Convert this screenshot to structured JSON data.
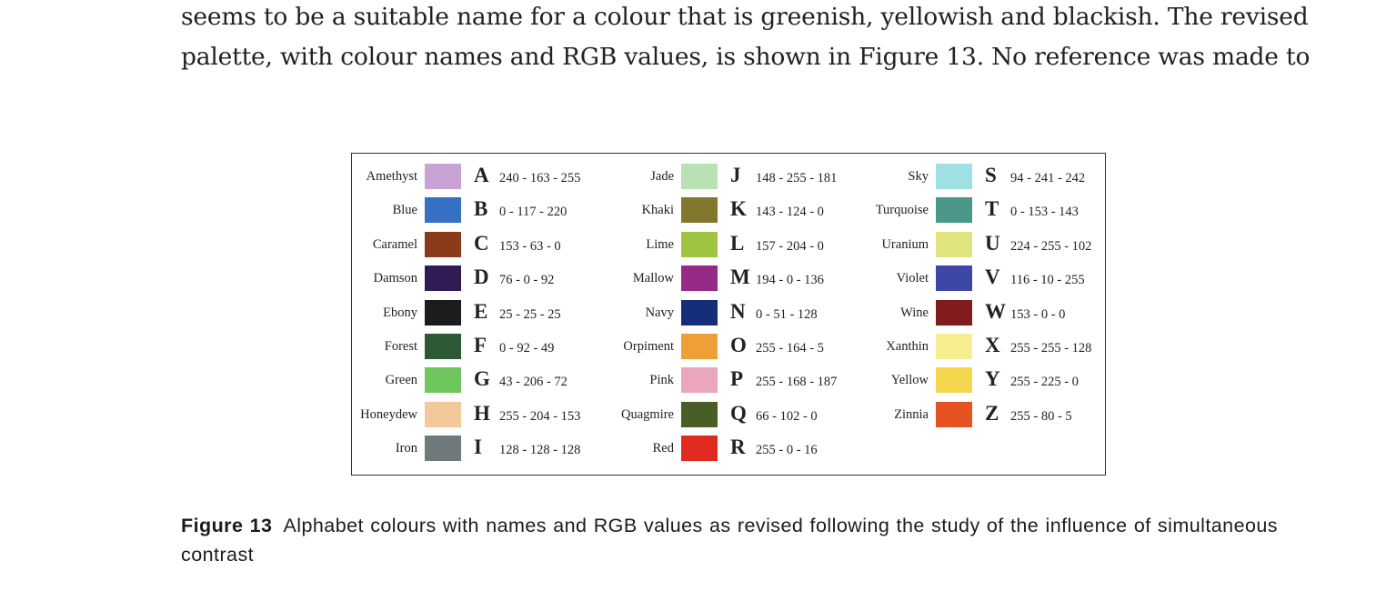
{
  "body_text": {
    "line1": "seems to be a suitable name for a colour that is greenish, yellowish and blackish. The revised",
    "line2": "palette, with colour names and RGB values, is shown in Figure 13. No reference was made to"
  },
  "figure": {
    "columns": [
      [
        {
          "name": "Amethyst",
          "letter": "A",
          "rgb": "240 - 163 - 255",
          "color": "#c9a3d6"
        },
        {
          "name": "Blue",
          "letter": "B",
          "rgb": "0 - 117 - 220",
          "color": "#3570c2"
        },
        {
          "name": "Caramel",
          "letter": "C",
          "rgb": "153 - 63 - 0",
          "color": "#8b3b1a"
        },
        {
          "name": "Damson",
          "letter": "D",
          "rgb": "76 - 0 - 92",
          "color": "#311b55"
        },
        {
          "name": "Ebony",
          "letter": "E",
          "rgb": "25 - 25 - 25",
          "color": "#1c1c1c"
        },
        {
          "name": "Forest",
          "letter": "F",
          "rgb": "0 - 92 - 49",
          "color": "#2d5a35"
        },
        {
          "name": "Green",
          "letter": "G",
          "rgb": "43 - 206 - 72",
          "color": "#6fc65c"
        },
        {
          "name": "Honeydew",
          "letter": "H",
          "rgb": "255 - 204 - 153",
          "color": "#f3c99b"
        },
        {
          "name": "Iron",
          "letter": "I",
          "rgb": "128 - 128 - 128",
          "color": "#707a7a"
        }
      ],
      [
        {
          "name": "Jade",
          "letter": "J",
          "rgb": "148 - 255 - 181",
          "color": "#b8e2b3"
        },
        {
          "name": "Khaki",
          "letter": "K",
          "rgb": "143 - 124 - 0",
          "color": "#81772d"
        },
        {
          "name": "Lime",
          "letter": "L",
          "rgb": "157 - 204 - 0",
          "color": "#9fc540"
        },
        {
          "name": "Mallow",
          "letter": "M",
          "rgb": "194 - 0 - 136",
          "color": "#952b86"
        },
        {
          "name": "Navy",
          "letter": "N",
          "rgb": "0 - 51 - 128",
          "color": "#142e7a"
        },
        {
          "name": "Orpiment",
          "letter": "O",
          "rgb": "255 - 164 - 5",
          "color": "#ef9f37"
        },
        {
          "name": "Pink",
          "letter": "P",
          "rgb": "255 - 168 - 187",
          "color": "#eba6bd"
        },
        {
          "name": "Quagmire",
          "letter": "Q",
          "rgb": "66 - 102 - 0",
          "color": "#485e26"
        },
        {
          "name": "Red",
          "letter": "R",
          "rgb": "255 - 0 - 16",
          "color": "#e02b20"
        }
      ],
      [
        {
          "name": "Sky",
          "letter": "S",
          "rgb": "94 - 241 - 242",
          "color": "#9ee0e4"
        },
        {
          "name": "Turquoise",
          "letter": "T",
          "rgb": "0 - 153 - 143",
          "color": "#4a988a"
        },
        {
          "name": "Uranium",
          "letter": "U",
          "rgb": "224 - 255 - 102",
          "color": "#e1e47c"
        },
        {
          "name": "Violet",
          "letter": "V",
          "rgb": "116 - 10 - 255",
          "color": "#3f47a6"
        },
        {
          "name": "Wine",
          "letter": "W",
          "rgb": "153 - 0 - 0",
          "color": "#801c1c"
        },
        {
          "name": "Xanthin",
          "letter": "X",
          "rgb": "255 - 255 - 128",
          "color": "#f7ed91"
        },
        {
          "name": "Yellow",
          "letter": "Y",
          "rgb": "255 - 225 - 0",
          "color": "#f5d74d"
        },
        {
          "name": "Zinnia",
          "letter": "Z",
          "rgb": "255 - 80 - 5",
          "color": "#e55322"
        }
      ]
    ]
  },
  "caption": {
    "label": "Figure 13",
    "text": "Alphabet colours with names and RGB values as revised following the study of the influence of simultaneous contrast"
  }
}
